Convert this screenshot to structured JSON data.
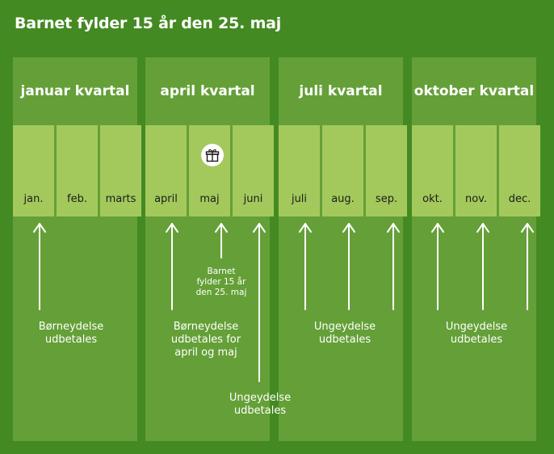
{
  "title": "Barnet fylder 15 år den 25. maj",
  "quarters": [
    {
      "label": "januar kvartal"
    },
    {
      "label": "april kvartal"
    },
    {
      "label": "juli kvartal"
    },
    {
      "label": "oktober kvartal"
    }
  ],
  "months": [
    "jan.",
    "feb.",
    "marts",
    "april",
    "maj",
    "juni",
    "juli",
    "aug.",
    "sep.",
    "okt.",
    "nov.",
    "dec."
  ],
  "gift_icon": "gift-icon",
  "birthday_note": {
    "line1": "Barnet",
    "line2": "fylder 15 år",
    "line3": "den 25. maj"
  },
  "notes": {
    "q1": {
      "line1": "Børneydelse",
      "line2": "udbetales"
    },
    "q2": {
      "line1": "Børneydelse",
      "line2": "udbetales for",
      "line3": "april og maj"
    },
    "june": {
      "line1": "Ungeydelse",
      "line2": "udbetales"
    },
    "q3": {
      "line1": "Ungeydelse",
      "line2": "udbetales"
    },
    "q4": {
      "line1": "Ungeydelse",
      "line2": "udbetales"
    }
  }
}
